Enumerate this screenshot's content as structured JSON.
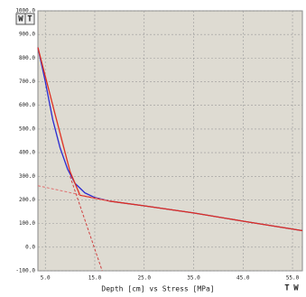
{
  "chart_data": {
    "type": "line",
    "buttons_top": [
      "W",
      "T"
    ],
    "buttons_bottom": [
      "T",
      "W"
    ],
    "x_label": "Depth [cm] vs Stress [MPa]",
    "xlim": [
      3.5,
      57
    ],
    "xticks": [
      5,
      15,
      25,
      35,
      45,
      55
    ],
    "xtick_labels": [
      "5.0",
      "15.0",
      "25.0",
      "35.0",
      "45.0",
      "55.0"
    ],
    "ylim": [
      -100,
      1000
    ],
    "yticks": [
      {
        "value": -100,
        "label": "-100.0"
      },
      {
        "value": 0,
        "label": "0.0"
      },
      {
        "value": 100,
        "label": "100.0"
      },
      {
        "value": 200,
        "label": "200.0"
      },
      {
        "value": 300,
        "label": "300.0"
      },
      {
        "value": 400,
        "label": "400.0"
      },
      {
        "value": 500,
        "label": "500.0"
      },
      {
        "value": 600,
        "label": "600.0"
      },
      {
        "value": 700,
        "label": "700.0"
      },
      {
        "value": 800,
        "label": "800.0"
      },
      {
        "value": 900,
        "label": "900.0"
      },
      {
        "value": 1000,
        "label": "1000.0"
      }
    ],
    "grid": true,
    "series": [
      {
        "color": "#2a2ad0",
        "dash": false,
        "x": [
          3.5,
          5,
          6.5,
          8,
          9.5,
          11,
          13,
          15,
          18,
          25,
          35,
          45,
          57
        ],
        "values": [
          845,
          700,
          540,
          420,
          330,
          270,
          230,
          210,
          195,
          175,
          145,
          110,
          70
        ]
      },
      {
        "color": "#e03020",
        "dash": false,
        "x": [
          3.5,
          7,
          10,
          12,
          18,
          25,
          35,
          45,
          57
        ],
        "values": [
          845,
          560,
          320,
          220,
          195,
          175,
          145,
          110,
          70
        ]
      },
      {
        "color": "#e07070",
        "dash": true,
        "x": [
          3.5,
          18
        ],
        "values": [
          260,
          195
        ]
      },
      {
        "color": "#d04040",
        "dash": true,
        "x": [
          10,
          16.5
        ],
        "values": [
          300,
          -100
        ]
      }
    ]
  }
}
